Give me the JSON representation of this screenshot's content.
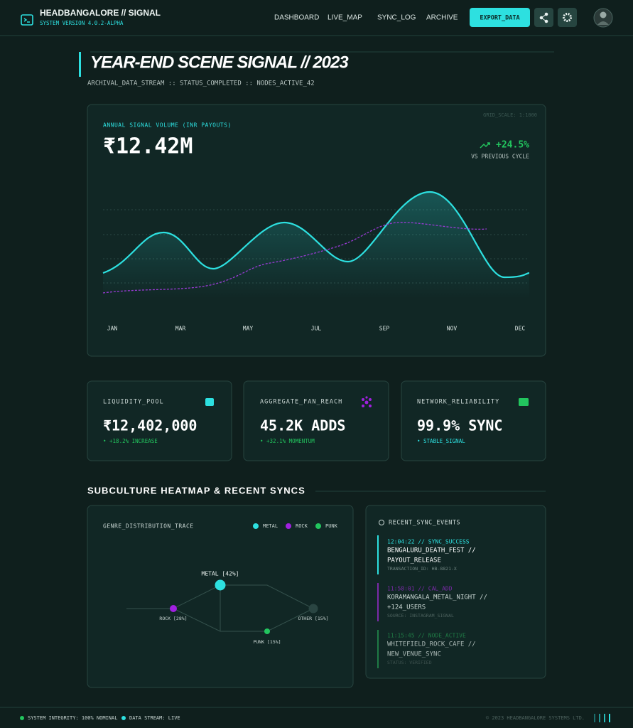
{
  "header": {
    "title": "HEADBANGALORE // SIGNAL",
    "subtitle": "SYSTEM VERSION 4.0.2-ALPHA",
    "nav": [
      "DASHBOARD",
      "LIVE_MAP",
      "SYNC_LOG",
      "ARCHIVE"
    ],
    "button": "EXPORT_DATA"
  },
  "page": {
    "title": "YEAR-END SCENE SIGNAL // 2023",
    "subtitle": "ARCHIVAL_DATA_STREAM :: STATUS_COMPLETED :: NODES_ACTIVE_42"
  },
  "signal_card": {
    "label": "ANNUAL SIGNAL VOLUME (INR PAYOUTS)",
    "value": "₹12.42M",
    "grid_scale": "GRID_SCALE: 1:1000",
    "change": "+24.5%",
    "change_note": "VS PREVIOUS CYCLE",
    "months": [
      "JAN",
      "MAR",
      "MAY",
      "JUL",
      "SEP",
      "NOV",
      "DEC"
    ]
  },
  "stats": [
    {
      "label": "LIQUIDITY_POOL",
      "value": "₹12,402,000",
      "note": "• +18.2% INCREASE"
    },
    {
      "label": "AGGREGATE_FAN_REACH",
      "value": "45.2K ADDS",
      "note": "• +32.1% MOMENTUM"
    },
    {
      "label": "NETWORK_RELIABILITY",
      "value": "99.9% SYNC",
      "note": "• STABLE_SIGNAL"
    }
  ],
  "section": {
    "title": "SUBCULTURE HEATMAP & RECENT SYNCS"
  },
  "heatmap": {
    "label": "GENRE_DISTRIBUTION_TRACE",
    "legend": [
      "METAL",
      "ROCK",
      "PUNK"
    ],
    "nodes": [
      "METAL [42%]",
      "ROCK [28%]",
      "PUNK [15%]",
      "OTHER [15%]"
    ]
  },
  "events": {
    "title": "RECENT_SYNC_EVENTS",
    "items": [
      {
        "time": "12:04:22 // SYNC_SUCCESS",
        "lines": [
          "BENGALURU_DEATH_FEST //",
          "PAYOUT_RELEASE"
        ],
        "meta": "TRANSACTION_ID: HB-8821-X"
      },
      {
        "time": "11:58:01 // CAL_ADD",
        "lines": [
          "KORAMANGALA_METAL_NIGHT //",
          "+124_USERS"
        ],
        "meta": "SOURCE: INSTAGRAM_SIGNAL"
      },
      {
        "time": "11:15:45 // NODE_ACTIVE",
        "lines": [
          "WHITEFIELD_ROCK_CAFE //",
          "NEW_VENUE_SYNC"
        ],
        "meta": "STATUS: VERIFIED"
      }
    ]
  },
  "footer": {
    "integrity": "SYSTEM INTEGRITY: 100% NOMINAL",
    "stream": "DATA STREAM: LIVE",
    "copyright": "© 2023 HEADBANGALORE SYSTEMS LTD."
  }
}
